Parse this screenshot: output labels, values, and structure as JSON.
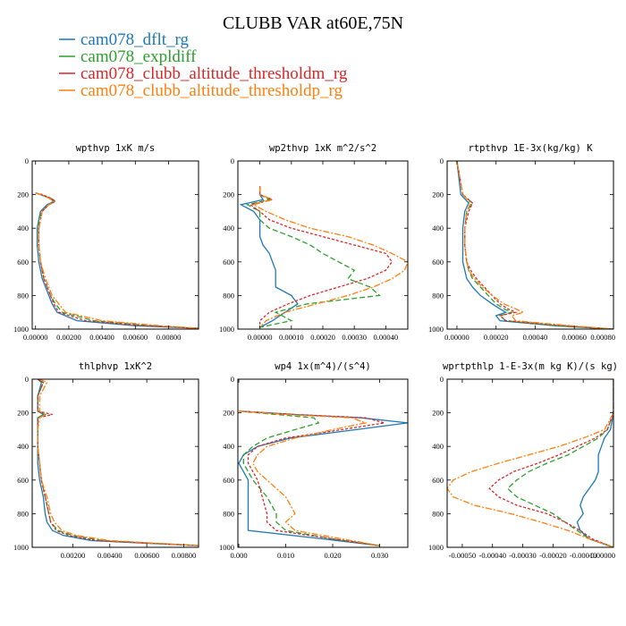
{
  "title": "CLUBB VAR at60E,75N",
  "legend": [
    {
      "name": "cam078_dflt_rg",
      "color": "#1f77b4"
    },
    {
      "name": "cam078_expldiff",
      "color": "#2ca02c"
    },
    {
      "name": "cam078_clubb_altitude_thresholdm_rg",
      "color": "#d62728"
    },
    {
      "name": "cam078_clubb_altitude_thresholdp_rg",
      "color": "#ff7f0e"
    }
  ],
  "chart_data": [
    {
      "type": "line",
      "title": "wpthvp   1xK m/s",
      "xlim": [
        -0.0002,
        0.0098
      ],
      "ylim": [
        0,
        1000
      ],
      "xticks": [
        0,
        0.002,
        0.004,
        0.006,
        0.008
      ],
      "xtick_labels": [
        "0.00000",
        "0.00200",
        "0.00400",
        "0.00600",
        "0.00800"
      ],
      "yticks": [
        0,
        200,
        400,
        600,
        800,
        1000
      ],
      "ytick_labels": [
        "0",
        "200",
        "400",
        "600",
        "800",
        "1000"
      ],
      "y_reversed": true,
      "y": [
        190,
        200,
        220,
        240,
        260,
        280,
        300,
        350,
        400,
        500,
        600,
        700,
        750,
        800,
        850,
        900,
        950,
        980,
        995
      ],
      "series": [
        {
          "name": "cam078_dflt_rg",
          "values": [
            0.0,
            0.0003,
            0.0008,
            0.0011,
            0.0007,
            0.0005,
            0.0003,
            0.0002,
            0.0001,
            0.0001,
            0.0002,
            0.0004,
            0.0006,
            0.0008,
            0.001,
            0.0013,
            0.0025,
            0.006,
            0.0098
          ]
        },
        {
          "name": "cam078_expldiff",
          "values": [
            0.0,
            0.0003,
            0.0009,
            0.0012,
            0.0008,
            0.0006,
            0.0004,
            0.0002,
            0.0002,
            0.0002,
            0.0003,
            0.0005,
            0.0007,
            0.0009,
            0.0012,
            0.0016,
            0.0035,
            0.007,
            0.0098
          ]
        },
        {
          "name": "cam078_clubb_altitude_thresholdm_rg",
          "values": [
            0.0,
            0.0004,
            0.0009,
            0.0012,
            0.0008,
            0.0006,
            0.0004,
            0.0003,
            0.0002,
            0.0002,
            0.0003,
            0.0005,
            0.0007,
            0.0009,
            0.0011,
            0.0014,
            0.003,
            0.0065,
            0.0098
          ]
        },
        {
          "name": "cam078_clubb_altitude_thresholdp_rg",
          "values": [
            0.0,
            0.0003,
            0.0008,
            0.0011,
            0.0008,
            0.0006,
            0.0004,
            0.0003,
            0.0002,
            0.0002,
            0.0003,
            0.0006,
            0.0008,
            0.001,
            0.0014,
            0.0018,
            0.004,
            0.0075,
            0.0098
          ]
        }
      ]
    },
    {
      "type": "line",
      "title": "wp2thvp   1xK m^2/s^2",
      "xlim": [
        -7e-05,
        0.00047
      ],
      "ylim": [
        0,
        1000
      ],
      "xticks": [
        0,
        0.0001,
        0.0002,
        0.0003,
        0.0004
      ],
      "xtick_labels": [
        "0.00000",
        "0.00010",
        "0.00020",
        "0.00030",
        "0.00040"
      ],
      "yticks": [
        0,
        200,
        400,
        600,
        800,
        1000
      ],
      "ytick_labels": [
        "0",
        "200",
        "400",
        "600",
        "800",
        "1000"
      ],
      "y_reversed": true,
      "y": [
        150,
        200,
        230,
        260,
        300,
        350,
        400,
        450,
        500,
        550,
        600,
        650,
        700,
        750,
        800,
        850,
        900,
        950,
        990
      ],
      "series": [
        {
          "name": "cam078_dflt_rg",
          "values": [
            0.0,
            0.0,
            1e-05,
            -6e-05,
            -2e-05,
            0.0,
            0.0,
            0.0,
            1e-05,
            3e-05,
            4e-05,
            5e-05,
            5e-05,
            5e-05,
            0.0001,
            0.00012,
            8e-05,
            4e-05,
            0.0
          ]
        },
        {
          "name": "cam078_expldiff",
          "values": [
            0.0,
            0.0,
            3e-05,
            -4e-05,
            0.0,
            0.0,
            3e-05,
            0.0001,
            0.00016,
            0.0002,
            0.00025,
            0.0003,
            0.00028,
            0.00035,
            0.00038,
            0.00015,
            5e-05,
            0.0001,
            0.0
          ]
        },
        {
          "name": "cam078_clubb_altitude_thresholdm_rg",
          "values": [
            0.0,
            0.0,
            4e-05,
            -3e-05,
            0.0,
            3e-05,
            0.0001,
            0.0002,
            0.0003,
            0.0004,
            0.00042,
            0.0004,
            0.00034,
            0.00025,
            0.00016,
            9e-05,
            3e-05,
            0.0,
            0.0
          ]
        },
        {
          "name": "cam078_clubb_altitude_thresholdp_rg",
          "values": [
            0.0,
            0.0,
            4e-05,
            -2e-05,
            2e-05,
            8e-05,
            0.00016,
            0.00028,
            0.00036,
            0.00042,
            0.00047,
            0.00046,
            0.00042,
            0.00036,
            0.00028,
            0.00018,
            8e-05,
            2e-05,
            0.0
          ]
        }
      ]
    },
    {
      "type": "line",
      "title": "rtpthvp   1E-3x(kg/kg) K",
      "xlim": [
        -5e-05,
        0.0008
      ],
      "ylim": [
        0,
        1000
      ],
      "xticks": [
        0,
        0.0002,
        0.0004,
        0.0006,
        0.0008
      ],
      "xtick_labels": [
        "0.00000",
        "0.00020",
        "0.00040",
        "0.00060",
        "0.00080"
      ],
      "yticks": [
        0,
        200,
        400,
        600,
        800,
        1000
      ],
      "ytick_labels": [
        "0",
        "200",
        "400",
        "600",
        "800",
        "1000"
      ],
      "y_reversed": true,
      "y": [
        0,
        200,
        250,
        300,
        400,
        500,
        600,
        650,
        700,
        750,
        800,
        850,
        880,
        900,
        920,
        950,
        980,
        1000
      ],
      "series": [
        {
          "name": "cam078_dflt_rg",
          "values": [
            0.0,
            2e-05,
            6e-05,
            4e-05,
            3e-05,
            3e-05,
            3e-05,
            4e-05,
            5e-05,
            8e-05,
            0.00012,
            0.00018,
            0.00022,
            0.00025,
            0.0002,
            0.00022,
            0.0005,
            0.0008
          ]
        },
        {
          "name": "cam078_expldiff",
          "values": [
            0.0,
            3e-05,
            8e-05,
            5e-05,
            4e-05,
            4e-05,
            5e-05,
            6e-05,
            8e-05,
            0.00012,
            0.00016,
            0.0002,
            0.00024,
            0.00028,
            0.00022,
            0.00025,
            0.0005,
            0.0008
          ]
        },
        {
          "name": "cam078_clubb_altitude_thresholdm_rg",
          "values": [
            0.0,
            3e-05,
            8e-05,
            6e-05,
            4e-05,
            4e-05,
            5e-05,
            7e-05,
            0.0001,
            0.00014,
            0.00018,
            0.00022,
            0.00026,
            0.0003,
            0.00022,
            0.00025,
            0.00055,
            0.0008
          ]
        },
        {
          "name": "cam078_clubb_altitude_thresholdp_rg",
          "values": [
            0.0,
            3e-05,
            7e-05,
            5e-05,
            4e-05,
            4e-05,
            5e-05,
            6e-05,
            9e-05,
            0.00013,
            0.00018,
            0.00024,
            0.0003,
            0.00034,
            0.00028,
            0.0003,
            0.00058,
            0.0008
          ]
        }
      ]
    },
    {
      "type": "line",
      "title": "thlphvp   1xK^2",
      "xlim": [
        -0.0002,
        0.0088
      ],
      "ylim": [
        0,
        1000
      ],
      "xticks": [
        0.002,
        0.004,
        0.006,
        0.008
      ],
      "xtick_labels": [
        "0.00200",
        "0.00400",
        "0.00600",
        "0.00800"
      ],
      "yticks": [
        0,
        200,
        400,
        600,
        800,
        1000
      ],
      "ytick_labels": [
        "0",
        "200",
        "400",
        "600",
        "800",
        "1000"
      ],
      "y_reversed": true,
      "y": [
        0,
        20,
        100,
        190,
        210,
        230,
        300,
        400,
        500,
        600,
        700,
        800,
        850,
        900,
        930,
        960,
        990
      ],
      "series": [
        {
          "name": "cam078_dflt_rg",
          "values": [
            0.0001,
            0.0003,
            0.0001,
            0.0001,
            0.0004,
            0.0001,
            0.0001,
            0.0001,
            0.0001,
            0.0002,
            0.0004,
            0.0005,
            0.0006,
            0.0009,
            0.0015,
            0.003,
            0.0088
          ]
        },
        {
          "name": "cam078_expldiff",
          "values": [
            0.0001,
            0.0004,
            0.0001,
            0.0001,
            0.0005,
            0.0001,
            0.0001,
            0.0001,
            0.0002,
            0.0003,
            0.0005,
            0.0007,
            0.0008,
            0.0012,
            0.002,
            0.0036,
            0.0088
          ]
        },
        {
          "name": "cam078_clubb_altitude_thresholdm_rg",
          "values": [
            0.0001,
            0.0004,
            0.0001,
            0.0001,
            0.0009,
            0.0001,
            0.0001,
            0.0001,
            0.0002,
            0.0003,
            0.0005,
            0.0007,
            0.0008,
            0.0011,
            0.0018,
            0.0033,
            0.0088
          ]
        },
        {
          "name": "cam078_clubb_altitude_thresholdp_rg",
          "values": [
            0.0002,
            0.0006,
            0.0002,
            0.0002,
            0.0005,
            0.0002,
            0.0001,
            0.0001,
            0.0002,
            0.0003,
            0.0006,
            0.0008,
            0.001,
            0.0014,
            0.0022,
            0.004,
            0.0088
          ]
        }
      ]
    },
    {
      "type": "line",
      "title": "wp4   1x(m^4)/(s^4)",
      "xlim": [
        -0.0002,
        0.036
      ],
      "ylim": [
        0,
        1000
      ],
      "xticks": [
        0,
        0.01,
        0.02,
        0.03
      ],
      "xtick_labels": [
        "0.000",
        "0.010",
        "0.020",
        "0.030"
      ],
      "yticks": [
        0,
        200,
        400,
        600,
        800,
        1000
      ],
      "ytick_labels": [
        "0",
        "200",
        "400",
        "600",
        "800",
        "1000"
      ],
      "y_reversed": true,
      "y": [
        190,
        210,
        230,
        260,
        300,
        350,
        400,
        450,
        500,
        550,
        600,
        700,
        800,
        850,
        900,
        950,
        990
      ],
      "series": [
        {
          "name": "cam078_dflt_rg",
          "values": [
            0.0,
            0.012,
            0.026,
            0.036,
            0.025,
            0.011,
            0.004,
            0.001,
            0.0,
            0.001,
            0.002,
            0.002,
            0.002,
            0.002,
            0.002,
            0.018,
            0.03
          ]
        },
        {
          "name": "cam078_expldiff",
          "values": [
            0.0,
            0.008,
            0.016,
            0.017,
            0.012,
            0.006,
            0.003,
            0.001,
            0.001,
            0.002,
            0.003,
            0.006,
            0.008,
            0.008,
            0.01,
            0.02,
            0.03
          ]
        },
        {
          "name": "cam078_clubb_altitude_thresholdm_rg",
          "values": [
            0.0,
            0.012,
            0.027,
            0.031,
            0.022,
            0.01,
            0.004,
            0.002,
            0.002,
            0.003,
            0.004,
            0.005,
            0.006,
            0.006,
            0.008,
            0.02,
            0.03
          ]
        },
        {
          "name": "cam078_clubb_altitude_thresholdp_rg",
          "values": [
            0.0,
            0.01,
            0.024,
            0.027,
            0.02,
            0.012,
            0.006,
            0.004,
            0.003,
            0.004,
            0.006,
            0.01,
            0.012,
            0.01,
            0.012,
            0.022,
            0.03
          ]
        }
      ]
    },
    {
      "type": "line",
      "title": "wprtpthlp   1-E-3x(m kg K)/(s kg)",
      "xlim": [
        -0.00055,
        0.0
      ],
      "ylim": [
        0,
        1000
      ],
      "xticks": [
        -0.0005,
        -0.0004,
        -0.0003,
        -0.0002,
        -0.0001,
        0.0
      ],
      "xtick_labels": [
        "-0.00050",
        "-0.00040",
        "-0.00030",
        "-0.00020",
        "-0.00010",
        "-0.00000"
      ],
      "yticks": [
        0,
        200,
        400,
        600,
        800,
        1000
      ],
      "ytick_labels": [
        "0",
        "200",
        "400",
        "600",
        "800",
        "1000"
      ],
      "y_reversed": true,
      "y": [
        0,
        200,
        300,
        350,
        400,
        450,
        500,
        550,
        600,
        650,
        700,
        750,
        800,
        850,
        900,
        950,
        1000
      ],
      "series": [
        {
          "name": "cam078_dflt_rg",
          "values": [
            0.0,
            0.0,
            -1e-05,
            -3e-05,
            -4e-05,
            -5e-05,
            -5e-05,
            -5e-05,
            -6e-05,
            -8e-05,
            -0.0001,
            -0.00011,
            -0.0001,
            -0.00012,
            -0.00011,
            -8e-05,
            0.0
          ]
        },
        {
          "name": "cam078_expldiff",
          "values": [
            0.0,
            0.0,
            -2e-05,
            -5e-05,
            -0.0001,
            -0.00015,
            -0.00022,
            -0.00028,
            -0.00032,
            -0.00035,
            -0.00032,
            -0.00026,
            -0.0002,
            -0.00016,
            -0.00012,
            -8e-05,
            0.0
          ]
        },
        {
          "name": "cam078_clubb_altitude_thresholdm_rg",
          "values": [
            0.0,
            0.0,
            -2e-05,
            -6e-05,
            -0.00012,
            -0.00018,
            -0.00025,
            -0.00033,
            -0.00038,
            -0.00041,
            -0.00038,
            -0.00032,
            -0.00022,
            -0.00016,
            -0.00011,
            -7e-05,
            0.0
          ]
        },
        {
          "name": "cam078_clubb_altitude_thresholdp_rg",
          "values": [
            0.0,
            0.0,
            -3e-05,
            -0.0001,
            -0.00018,
            -0.00028,
            -0.00038,
            -0.00047,
            -0.00053,
            -0.00055,
            -0.00053,
            -0.00046,
            -0.00034,
            -0.00024,
            -0.00015,
            -8e-05,
            0.0
          ]
        }
      ]
    }
  ]
}
